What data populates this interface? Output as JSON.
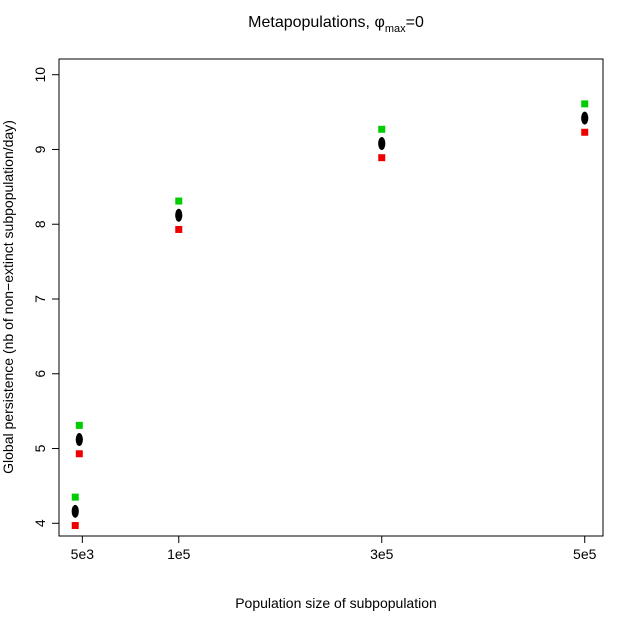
{
  "chart_data": {
    "type": "scatter",
    "title_main": "Metapopulations, ",
    "title_symbol": "φ",
    "title_subscript": "max",
    "title_suffix": "=0",
    "xlabel": "Population size of subpopulation",
    "ylabel": "Global persistence (nb of non−extinct subpopulation/day)",
    "x_ticks": [
      {
        "value": 5000,
        "label": "5e3"
      },
      {
        "value": 100000,
        "label": "1e5"
      },
      {
        "value": 300000,
        "label": "3e5"
      },
      {
        "value": 500000,
        "label": "5e5"
      }
    ],
    "y_ticks": [
      {
        "value": 4,
        "label": "4"
      },
      {
        "value": 5,
        "label": "5"
      },
      {
        "value": 6,
        "label": "6"
      },
      {
        "value": 7,
        "label": "7"
      },
      {
        "value": 8,
        "label": "8"
      },
      {
        "value": 9,
        "label": "9"
      },
      {
        "value": 10,
        "label": "10"
      }
    ],
    "xlim": [
      -18000,
      518000
    ],
    "ylim": [
      3.83,
      10.21
    ],
    "grid": false,
    "series": [
      {
        "role": "upper",
        "marker": "square",
        "color": "#00cc00",
        "points": [
          [
            -2000,
            4.35
          ],
          [
            2000,
            5.31
          ],
          [
            100000,
            8.31
          ],
          [
            300000,
            9.27
          ],
          [
            500000,
            9.61
          ]
        ]
      },
      {
        "role": "lower",
        "marker": "square",
        "color": "#ee0000",
        "points": [
          [
            -2000,
            3.97
          ],
          [
            2000,
            4.93
          ],
          [
            100000,
            7.93
          ],
          [
            300000,
            8.89
          ],
          [
            500000,
            9.23
          ]
        ]
      },
      {
        "role": "estimate",
        "marker": "dot",
        "color": "#000000",
        "points": [
          [
            -2000,
            4.16
          ],
          [
            2000,
            5.12
          ],
          [
            100000,
            8.12
          ],
          [
            300000,
            9.08
          ],
          [
            500000,
            9.42
          ]
        ]
      }
    ]
  }
}
